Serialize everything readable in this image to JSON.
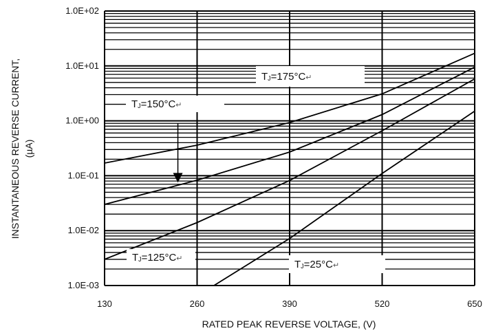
{
  "chart_data": {
    "type": "line",
    "title": "",
    "xlabel": "RATED PEAK REVERSE VOLTAGE, (V)",
    "ylabel_line1": "INSTANTANEOUS REVERSE CURRENT,",
    "ylabel_line2": "(µA)",
    "xlim": [
      130,
      650
    ],
    "ylim": [
      0.001,
      100
    ],
    "yscale": "log",
    "x_ticks": [
      {
        "value": 130,
        "label": "130"
      },
      {
        "value": 260,
        "label": "260"
      },
      {
        "value": 390,
        "label": "390"
      },
      {
        "value": 520,
        "label": "520"
      },
      {
        "value": 650,
        "label": "650"
      }
    ],
    "y_ticks": [
      {
        "value": 0.001,
        "label": "1.0E-03"
      },
      {
        "value": 0.01,
        "label": "1.0E-02"
      },
      {
        "value": 0.1,
        "label": "1.0E-01"
      },
      {
        "value": 1,
        "label": "1.0E+00"
      },
      {
        "value": 10,
        "label": "1.0E+01"
      },
      {
        "value": 100,
        "label": "1.0E+02"
      }
    ],
    "grid": true,
    "series": [
      {
        "points": [
          [
            130,
            0.17
          ],
          [
            260,
            0.36
          ],
          [
            390,
            0.93
          ],
          [
            520,
            3.1
          ],
          [
            650,
            17
          ]
        ]
      },
      {
        "points": [
          [
            130,
            0.03
          ],
          [
            260,
            0.083
          ],
          [
            390,
            0.27
          ],
          [
            520,
            1.3
          ],
          [
            650,
            9.5
          ]
        ]
      },
      {
        "points": [
          [
            130,
            0.003
          ],
          [
            260,
            0.014
          ],
          [
            390,
            0.082
          ],
          [
            520,
            0.66
          ],
          [
            650,
            5.8
          ]
        ]
      },
      {
        "points": [
          [
            275,
            0.00085
          ],
          [
            390,
            0.0072
          ],
          [
            520,
            0.11
          ],
          [
            650,
            1.5
          ]
        ]
      }
    ],
    "annotations": [
      {
        "prefix": "T",
        "sub": "J",
        "rest": "=175°C",
        "mark": "↵"
      },
      {
        "prefix": "T",
        "sub": "J",
        "rest": "=150°C",
        "mark": "↵"
      },
      {
        "prefix": "T",
        "sub": "J",
        "rest": "=125°C",
        "mark": "↵"
      },
      {
        "prefix": "T",
        "sub": "J",
        "rest": "=25°C",
        "mark": "↵"
      }
    ],
    "arrow": {
      "x": 233,
      "y_from": 0.9,
      "y_to": 0.075
    }
  }
}
